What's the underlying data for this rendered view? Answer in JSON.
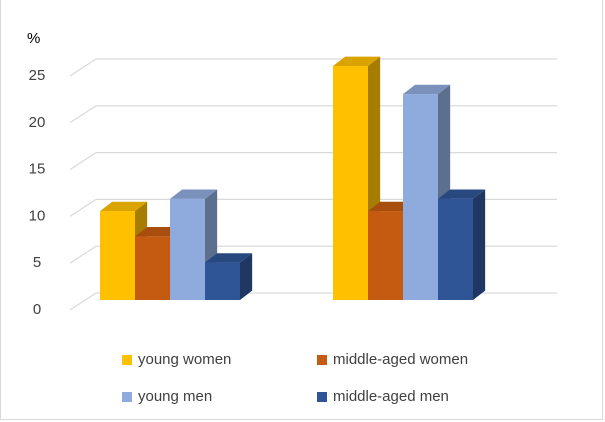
{
  "chart_data": {
    "type": "bar",
    "title": "",
    "xlabel": "",
    "ylabel": "%",
    "ylim": [
      0,
      25
    ],
    "yticks": [
      "0",
      "5",
      "10",
      "15",
      "20",
      "25"
    ],
    "grid": true,
    "style": "3d-clustered-column",
    "categories": [
      "",
      ""
    ],
    "series": [
      {
        "name": "young women",
        "color": "#ffc000",
        "values": [
          9.5,
          25
        ]
      },
      {
        "name": "middle-aged women",
        "color": "#c55a11",
        "values": [
          6.8,
          9.5
        ]
      },
      {
        "name": "young men",
        "color": "#8faadc",
        "values": [
          10.8,
          22
        ]
      },
      {
        "name": "middle-aged men",
        "color": "#2f5597",
        "values": [
          4,
          10.8
        ]
      }
    ],
    "legend_position": "bottom"
  }
}
